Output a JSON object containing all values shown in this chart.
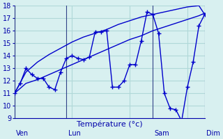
{
  "background_color": "#d8f0f0",
  "grid_color": "#b0d8d8",
  "line_color": "#0000cc",
  "marker_color": "#0000cc",
  "axis_label_color": "#0000aa",
  "tick_color": "#0000aa",
  "xlabel": "Température (°c)",
  "ylim": [
    9,
    18
  ],
  "yticks": [
    9,
    10,
    11,
    12,
    13,
    14,
    15,
    16,
    17,
    18
  ],
  "day_labels": [
    "Ven",
    "Lun",
    "Sam",
    "Dim"
  ],
  "day_positions": [
    0,
    9,
    24,
    33
  ],
  "series": [
    [
      11.0,
      11.8,
      13.0,
      12.5,
      12.2,
      12.2,
      11.5,
      11.3,
      12.7,
      13.8,
      14.0,
      13.8,
      13.7,
      13.9,
      15.9,
      15.9,
      16.0,
      11.5,
      11.5,
      12.0,
      13.3,
      13.3,
      15.2,
      17.5,
      17.3,
      15.8,
      11.0,
      9.8,
      9.7,
      8.8,
      11.5,
      13.5,
      16.4,
      17.3
    ],
    [
      11.0,
      12.7,
      13.5,
      14.1,
      14.6,
      15.1,
      15.5,
      15.8,
      16.1,
      16.5,
      16.8,
      17.1,
      17.3,
      17.5,
      17.7,
      17.9,
      18.0,
      17.3
    ],
    [
      11.0,
      11.8,
      12.1,
      12.5,
      12.9,
      13.3,
      13.7,
      14.1,
      14.5,
      14.9,
      15.3,
      15.6,
      16.0,
      16.3,
      16.6,
      16.9,
      17.2,
      17.4
    ]
  ],
  "series_x": [
    [
      0,
      1,
      2,
      3,
      4,
      5,
      6,
      7,
      8,
      9,
      10,
      11,
      12,
      13,
      14,
      15,
      16,
      17,
      18,
      19,
      20,
      21,
      22,
      23,
      24,
      25,
      26,
      27,
      28,
      29,
      30,
      31,
      32,
      33
    ],
    [
      0,
      2,
      4,
      6,
      8,
      10,
      12,
      14,
      16,
      18,
      20,
      22,
      24,
      26,
      28,
      30,
      32,
      33
    ],
    [
      0,
      2,
      4,
      6,
      8,
      10,
      12,
      14,
      16,
      18,
      20,
      22,
      24,
      26,
      28,
      30,
      32,
      33
    ]
  ]
}
